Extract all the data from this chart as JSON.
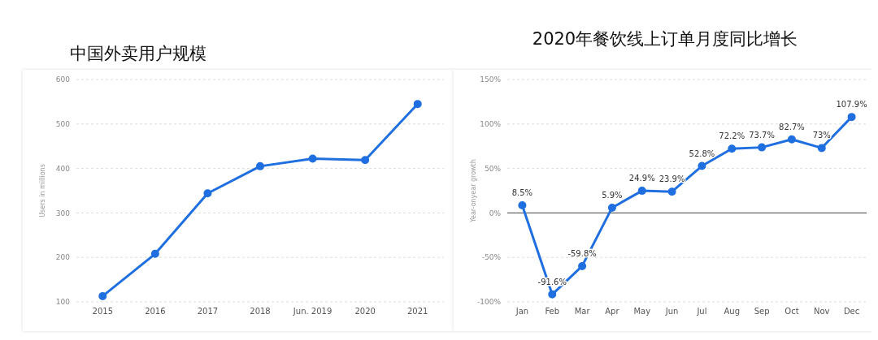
{
  "chart_data": [
    {
      "type": "line",
      "title": "中国外卖用户规模",
      "ylabel": "Users in millions",
      "categories": [
        "2015",
        "2016",
        "2017",
        "2018",
        "Jun. 2019",
        "2020",
        "2021"
      ],
      "series": [
        {
          "color": "#1f6fe0",
          "values": [
            113,
            208,
            344,
            405,
            422,
            419,
            545
          ]
        }
      ],
      "ylim": [
        100,
        600
      ],
      "yticks": [
        100,
        200,
        300,
        400,
        500,
        600
      ],
      "grid": "y",
      "marker": "circle",
      "line_style": "solid"
    },
    {
      "type": "line",
      "title": "2020年餐饮线上订单月度同比增长",
      "ylabel": "Year-onyear growth",
      "categories": [
        "Jan",
        "Feb",
        "Mar",
        "Apr",
        "May",
        "Jun",
        "Jul",
        "Aug",
        "Sep",
        "Oct",
        "Nov",
        "Dec"
      ],
      "series": [
        {
          "color": "#1f6fe0",
          "values": [
            8.5,
            -91.6,
            -59.8,
            5.9,
            24.9,
            23.9,
            52.8,
            72.2,
            73.7,
            82.7,
            73,
            107.9
          ],
          "value_labels": [
            "8.5%",
            "-91.6%",
            "-59.8%",
            "5.9%",
            "24.9%",
            "23.9%",
            "52.8%",
            "72.2%",
            "73.7%",
            "82.7%",
            "73%",
            "107.9%"
          ]
        }
      ],
      "ylim": [
        -100,
        150
      ],
      "yticks": [
        {
          "value": -100,
          "label": "-100%"
        },
        {
          "value": -50,
          "label": "-50%"
        },
        {
          "value": 0,
          "label": "0%"
        },
        {
          "value": 50,
          "label": "50%"
        },
        {
          "value": 100,
          "label": "100%"
        },
        {
          "value": 150,
          "label": "150%"
        }
      ],
      "ref_lines": [
        {
          "axis": "y",
          "value": 0,
          "color": "#444444"
        }
      ],
      "grid": "y",
      "marker": "circle",
      "line_style": "solid"
    }
  ]
}
